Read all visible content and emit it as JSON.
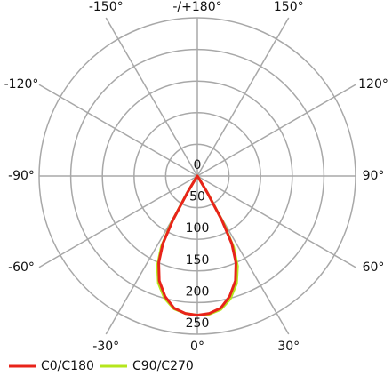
{
  "chart_data": {
    "type": "polar",
    "x": [
      -90,
      -35,
      -33,
      -31,
      -29,
      -27,
      -24,
      -20,
      -15,
      -10,
      -5,
      0,
      5,
      10,
      15,
      20,
      24,
      27,
      29,
      31,
      33,
      35,
      90
    ],
    "series": [
      {
        "name": "C0/C180",
        "color": "#e8231a",
        "values": [
          0,
          0,
          5,
          30,
          80,
          120,
          150,
          176,
          197,
          212,
          218,
          220,
          218,
          212,
          197,
          176,
          150,
          120,
          80,
          30,
          5,
          0,
          0
        ]
      },
      {
        "name": "C90/C270",
        "color": "#b5e61d",
        "values": [
          0,
          0,
          5,
          32,
          84,
          125,
          155,
          180,
          200,
          213,
          218,
          220,
          219,
          214,
          201,
          181,
          156,
          126,
          85,
          33,
          5,
          0,
          0
        ]
      }
    ],
    "rlim": [
      0,
      250
    ],
    "rticks": [
      0,
      50,
      100,
      150,
      200,
      250
    ],
    "angleticks": [
      {
        "value": -150,
        "label": "-150°"
      },
      {
        "value": 180,
        "label": "-/+180°"
      },
      {
        "value": 150,
        "label": "150°"
      },
      {
        "value": -120,
        "label": "-120°"
      },
      {
        "value": 120,
        "label": "120°"
      },
      {
        "value": -90,
        "label": "-90°"
      },
      {
        "value": 90,
        "label": "90°"
      },
      {
        "value": -60,
        "label": "-60°"
      },
      {
        "value": 60,
        "label": "60°"
      },
      {
        "value": -30,
        "label": "-30°"
      },
      {
        "value": 0,
        "label": "0°"
      },
      {
        "value": 30,
        "label": "30°"
      }
    ],
    "grid": true
  }
}
